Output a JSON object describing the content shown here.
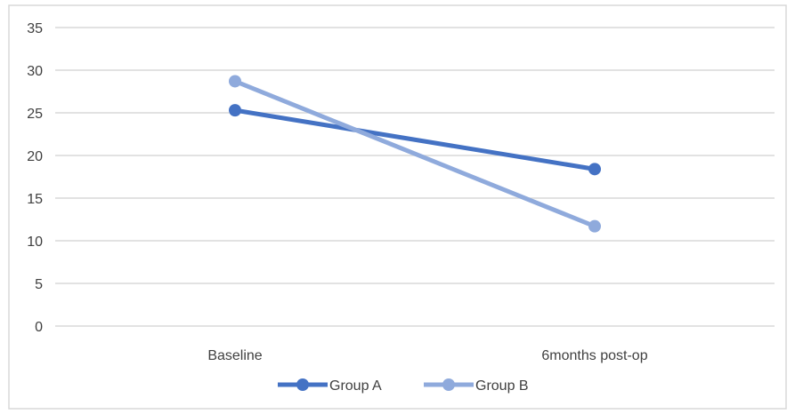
{
  "chart_data": {
    "type": "line",
    "categories": [
      "Baseline",
      "6months post-op"
    ],
    "series": [
      {
        "name": "Group A",
        "values": [
          25.3,
          18.4
        ],
        "color": "#4472C4"
      },
      {
        "name": "Group B",
        "values": [
          28.7,
          11.7
        ],
        "color": "#8FAADC"
      }
    ],
    "ylim": [
      0,
      35
    ],
    "yticks": [
      0,
      5,
      10,
      15,
      20,
      25,
      30,
      35
    ],
    "grid": true,
    "legend_position": "bottom",
    "border_color": "#D9D9D9",
    "grid_color": "#D9D9D9"
  }
}
